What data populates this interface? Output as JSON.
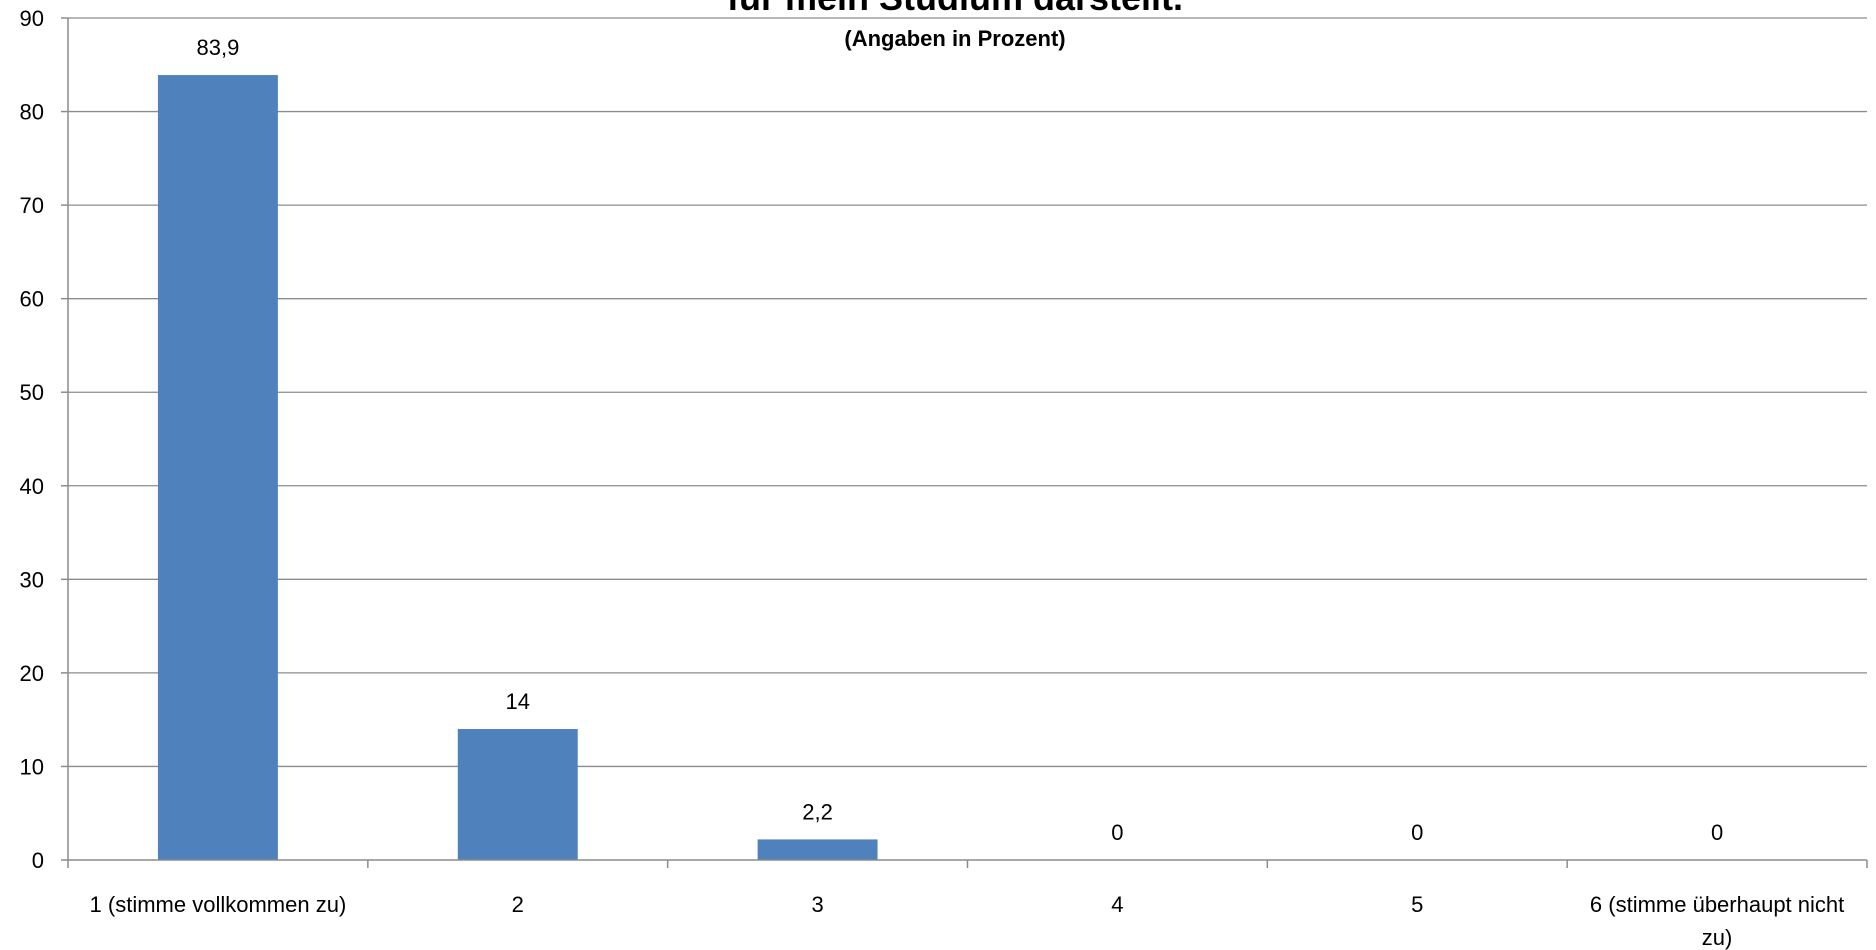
{
  "chart_data": {
    "type": "bar",
    "title": "für mein Studium darstellt.",
    "subtitle": "(Angaben in Prozent)",
    "xlabel": "",
    "ylabel": "",
    "categories": [
      "1 (stimme vollkommen zu)",
      "2",
      "3",
      "4",
      "5",
      "6 (stimme überhaupt nicht zu)"
    ],
    "category_lines": [
      [
        "1 (stimme vollkommen zu)"
      ],
      [
        "2"
      ],
      [
        "3"
      ],
      [
        "4"
      ],
      [
        "5"
      ],
      [
        "6 (stimme überhaupt nicht",
        "zu)"
      ]
    ],
    "values": [
      83.9,
      14,
      2.2,
      0,
      0,
      0
    ],
    "data_labels": [
      "83,9",
      "14",
      "2,2",
      "0",
      "0",
      "0"
    ],
    "ylim": [
      0,
      90
    ],
    "yticks": [
      0,
      10,
      20,
      30,
      40,
      50,
      60,
      70,
      80,
      90
    ],
    "grid": true,
    "legend": "none",
    "bar_color": "#4f81bd"
  }
}
